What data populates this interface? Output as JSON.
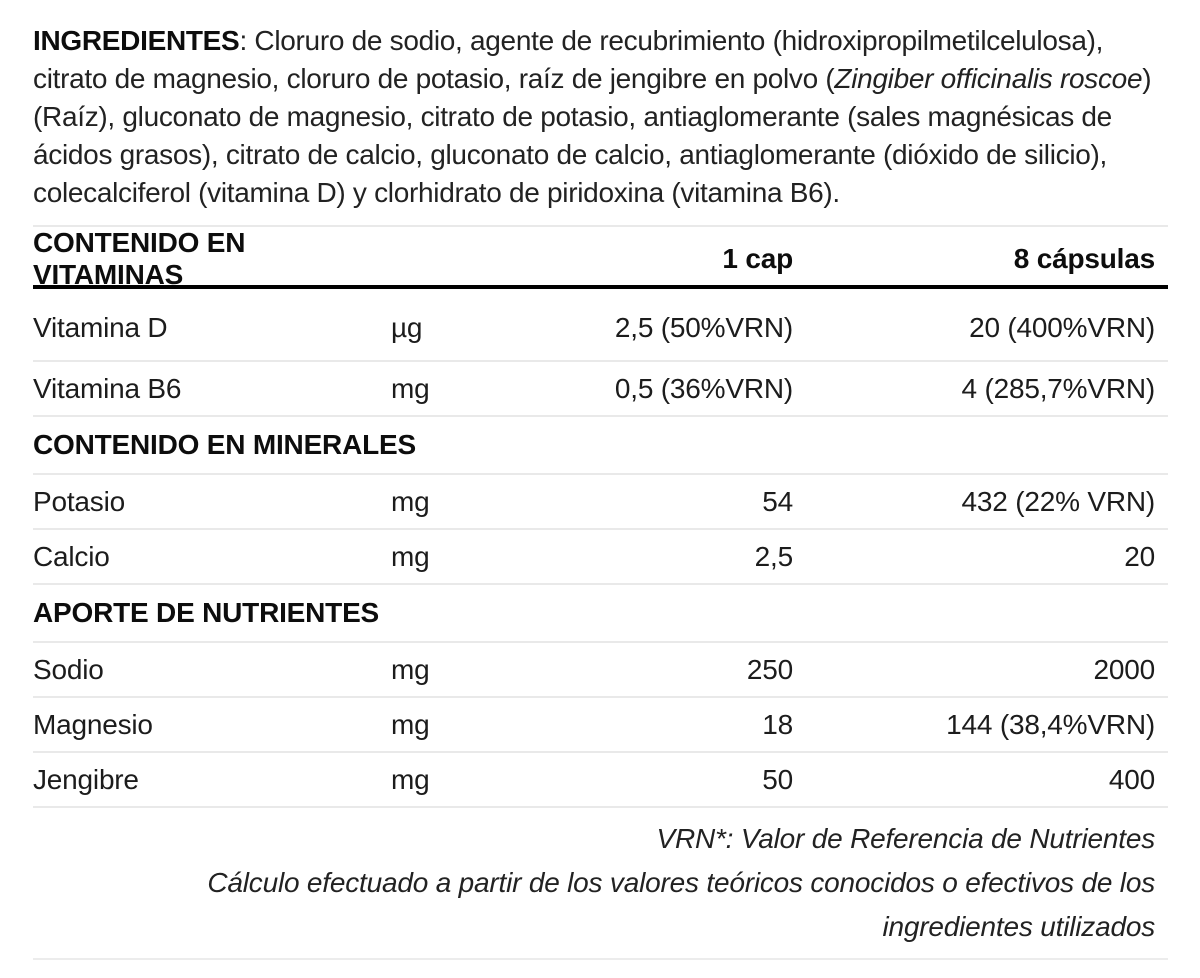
{
  "colors": {
    "text": "#1c1c1c",
    "rule_dark": "#000000",
    "rule_light": "#e9e9e9",
    "background": "#ffffff"
  },
  "ingredients": {
    "label": "INGREDIENTES",
    "separator": ": ",
    "part1": "Cloruro de sodio, agente de recubrimiento (hidroxipropilmetilcelulosa), citrato de magnesio, cloruro de potasio, raíz de jengibre en polvo (",
    "latin_name": "Zingiber officinalis roscoe",
    "part2": ")(Raíz), gluconato de magnesio, citrato de potasio, antiaglomerante (sales magnésicas de ácidos grasos), citrato de calcio, gluconato de calcio, antiaglomerante (dióxido de silicio), colecalciferol (vitamina D) y clorhidrato de piridoxina (vitamina B6)."
  },
  "table": {
    "header": {
      "title": "CONTENIDO EN VITAMINAS",
      "col_unit": "",
      "col_1cap": "1 cap",
      "col_8caps": "8 cápsulas"
    },
    "rows": [
      {
        "type": "data",
        "name": "Vitamina D",
        "unit": "µg",
        "per_cap": "2,5 (50%VRN)",
        "per_8caps": "20 (400%VRN)"
      },
      {
        "type": "data",
        "name": "Vitamina B6",
        "unit": "mg",
        "per_cap": "0,5 (36%VRN)",
        "per_8caps": "4 (285,7%VRN)"
      },
      {
        "type": "section",
        "name": "CONTENIDO EN MINERALES"
      },
      {
        "type": "data",
        "name": "Potasio",
        "unit": "mg",
        "per_cap": "54",
        "per_8caps": "432 (22% VRN)"
      },
      {
        "type": "data",
        "name": "Calcio",
        "unit": "mg",
        "per_cap": "2,5",
        "per_8caps": "20"
      },
      {
        "type": "section",
        "name": "APORTE DE NUTRIENTES"
      },
      {
        "type": "data",
        "name": "Sodio",
        "unit": "mg",
        "per_cap": "250",
        "per_8caps": "2000"
      },
      {
        "type": "data",
        "name": "Magnesio",
        "unit": "mg",
        "per_cap": "18",
        "per_8caps": "144 (38,4%VRN)"
      },
      {
        "type": "data",
        "name": "Jengibre",
        "unit": "mg",
        "per_cap": "50",
        "per_8caps": "400"
      }
    ]
  },
  "footnotes": {
    "line1": "VRN*: Valor de Referencia de Nutrientes",
    "line2": "Cálculo efectuado a partir de los valores teóricos conocidos o efectivos de los",
    "line3": "ingredientes utilizados"
  }
}
